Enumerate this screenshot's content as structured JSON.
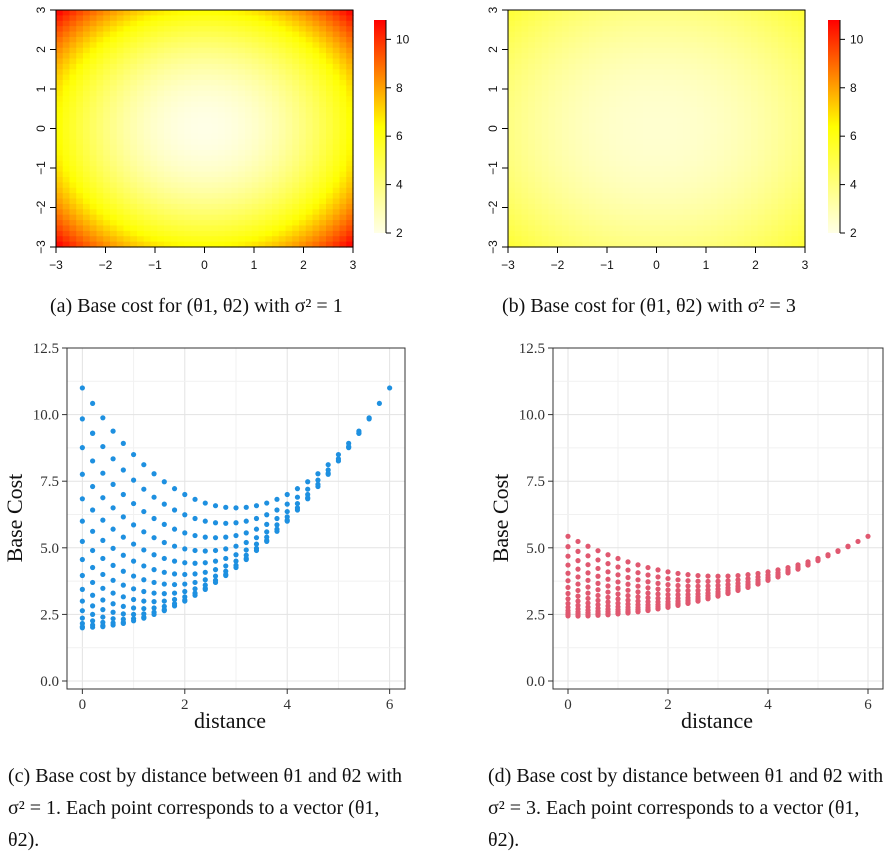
{
  "captions": {
    "a": "(a) Base cost for (θ1, θ2) with σ² = 1",
    "b": "(b) Base cost for (θ1, θ2) with σ² = 3",
    "c": "(c) Base cost by distance between θ1 and θ2 with σ² = 1. Each point corresponds to a vector (θ1, θ2).",
    "d": "(d) Base cost by distance between θ1 and θ2 with σ² = 3. Each point corresponds to a vector (θ1, θ2)."
  },
  "chart_data": [
    {
      "id": "a",
      "type": "heatmap",
      "x": [
        -3,
        3
      ],
      "y": [
        -3,
        3
      ],
      "sigma2": 1,
      "xticks": [
        "-3",
        "-2",
        "-1",
        "0",
        "1",
        "2",
        "3"
      ],
      "yticks": [
        "-3",
        "-2",
        "-1",
        "0",
        "1",
        "2",
        "3"
      ],
      "value_range": [
        2,
        10.8
      ],
      "colorbar_ticks": [
        "2",
        "4",
        "6",
        "8",
        "10"
      ],
      "color_min": "#ffffe6",
      "color_mid": "#ffff00",
      "color_max": "#ff0000"
    },
    {
      "id": "b",
      "type": "heatmap",
      "x": [
        -3,
        3
      ],
      "y": [
        -3,
        3
      ],
      "sigma2": 3,
      "xticks": [
        "-3",
        "-2",
        "-1",
        "0",
        "1",
        "2",
        "3"
      ],
      "yticks": [
        "-3",
        "-2",
        "-1",
        "0",
        "1",
        "2",
        "3"
      ],
      "value_range": [
        2,
        10.8
      ],
      "colorbar_ticks": [
        "2",
        "4",
        "6",
        "8",
        "10"
      ],
      "color_min": "#ffffe6",
      "color_mid": "#ffff00",
      "color_max": "#ff0000"
    },
    {
      "id": "c",
      "type": "scatter",
      "sigma2": 1,
      "xlabel": "distance",
      "ylabel": "Base Cost",
      "xlim": [
        -0.3,
        6.3
      ],
      "ylim": [
        -0.3,
        12.5
      ],
      "xticks": [
        "0",
        "2",
        "4",
        "6"
      ],
      "yticks": [
        "0.0",
        "2.5",
        "5.0",
        "7.5",
        "10.0",
        "12.5"
      ],
      "color": "#1e90e0"
    },
    {
      "id": "d",
      "type": "scatter",
      "sigma2": 3,
      "xlabel": "distance",
      "ylabel": "Base Cost",
      "xlim": [
        -0.3,
        6.3
      ],
      "ylim": [
        -0.3,
        12.5
      ],
      "xticks": [
        "0",
        "2",
        "4",
        "6"
      ],
      "yticks": [
        "0.0",
        "2.5",
        "5.0",
        "7.5",
        "10.0",
        "12.5"
      ],
      "color": "#e05870"
    }
  ]
}
